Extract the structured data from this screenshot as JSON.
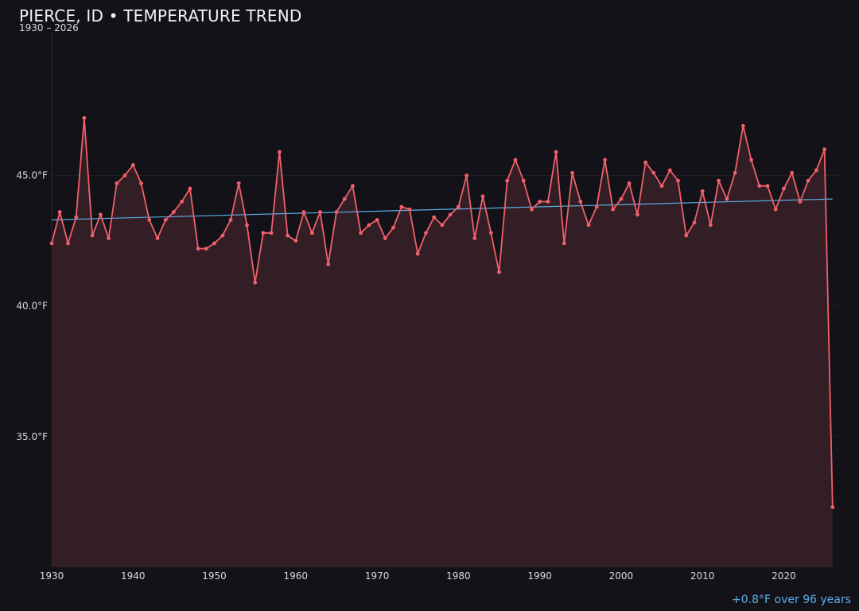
{
  "chart_data": {
    "type": "line",
    "title": "PIERCE, ID • TEMPERATURE TREND",
    "subtitle": "1930 – 2026",
    "x_ticks": [
      1930,
      1940,
      1950,
      1960,
      1970,
      1980,
      1990,
      2000,
      2010,
      2020
    ],
    "y_ticks": [
      {
        "value": 35.0,
        "label": "35.0°F"
      },
      {
        "value": 40.0,
        "label": "40.0°F"
      },
      {
        "value": 45.0,
        "label": "45.0°F"
      }
    ],
    "xlim": [
      1930,
      2026.8
    ],
    "ylim": [
      30.0,
      50.5
    ],
    "grid": true,
    "series": [
      {
        "color": "#f0606a",
        "fill": "#331e25",
        "x": [
          1930,
          1931,
          1932,
          1933,
          1934,
          1935,
          1936,
          1937,
          1938,
          1939,
          1940,
          1941,
          1942,
          1943,
          1944,
          1945,
          1946,
          1947,
          1948,
          1949,
          1950,
          1951,
          1952,
          1953,
          1954,
          1955,
          1956,
          1957,
          1958,
          1959,
          1960,
          1961,
          1962,
          1963,
          1964,
          1965,
          1966,
          1967,
          1968,
          1969,
          1970,
          1971,
          1972,
          1973,
          1974,
          1975,
          1976,
          1977,
          1978,
          1979,
          1980,
          1981,
          1982,
          1983,
          1984,
          1985,
          1986,
          1987,
          1988,
          1989,
          1990,
          1991,
          1992,
          1993,
          1994,
          1995,
          1996,
          1997,
          1998,
          1999,
          2000,
          2001,
          2002,
          2003,
          2004,
          2005,
          2006,
          2007,
          2008,
          2009,
          2010,
          2011,
          2012,
          2013,
          2014,
          2015,
          2016,
          2017,
          2018,
          2019,
          2020,
          2021,
          2022,
          2023,
          2024,
          2025,
          2026
        ],
        "values": [
          42.4,
          43.6,
          42.4,
          43.4,
          47.2,
          42.7,
          43.5,
          42.6,
          44.7,
          45.0,
          45.4,
          44.7,
          43.3,
          42.6,
          43.3,
          43.6,
          44.0,
          44.5,
          42.2,
          42.2,
          42.4,
          42.7,
          43.3,
          44.7,
          43.1,
          40.9,
          42.8,
          42.8,
          45.9,
          42.7,
          42.5,
          43.6,
          42.8,
          43.6,
          41.6,
          43.6,
          44.1,
          44.6,
          42.8,
          43.1,
          43.3,
          42.6,
          43.0,
          43.8,
          43.7,
          42.0,
          42.8,
          43.4,
          43.1,
          43.5,
          43.8,
          45.0,
          42.6,
          44.2,
          42.8,
          41.3,
          44.8,
          45.6,
          44.8,
          43.7,
          44.0,
          44.0,
          45.9,
          42.4,
          45.1,
          44.0,
          43.1,
          43.8,
          45.6,
          43.7,
          44.1,
          44.7,
          43.5,
          45.5,
          45.1,
          44.6,
          45.2,
          44.8,
          42.7,
          43.2,
          44.4,
          43.1,
          44.8,
          44.1,
          45.1,
          46.9,
          45.6,
          44.6,
          44.6,
          43.7,
          44.5,
          45.1,
          44.0,
          44.8,
          45.2,
          46.0,
          32.3
        ]
      }
    ],
    "trend": {
      "color": "#5aaee8",
      "x": [
        1930,
        2026
      ],
      "y": [
        43.3,
        44.1
      ]
    },
    "annotation": "+0.8°F over 96 years"
  }
}
